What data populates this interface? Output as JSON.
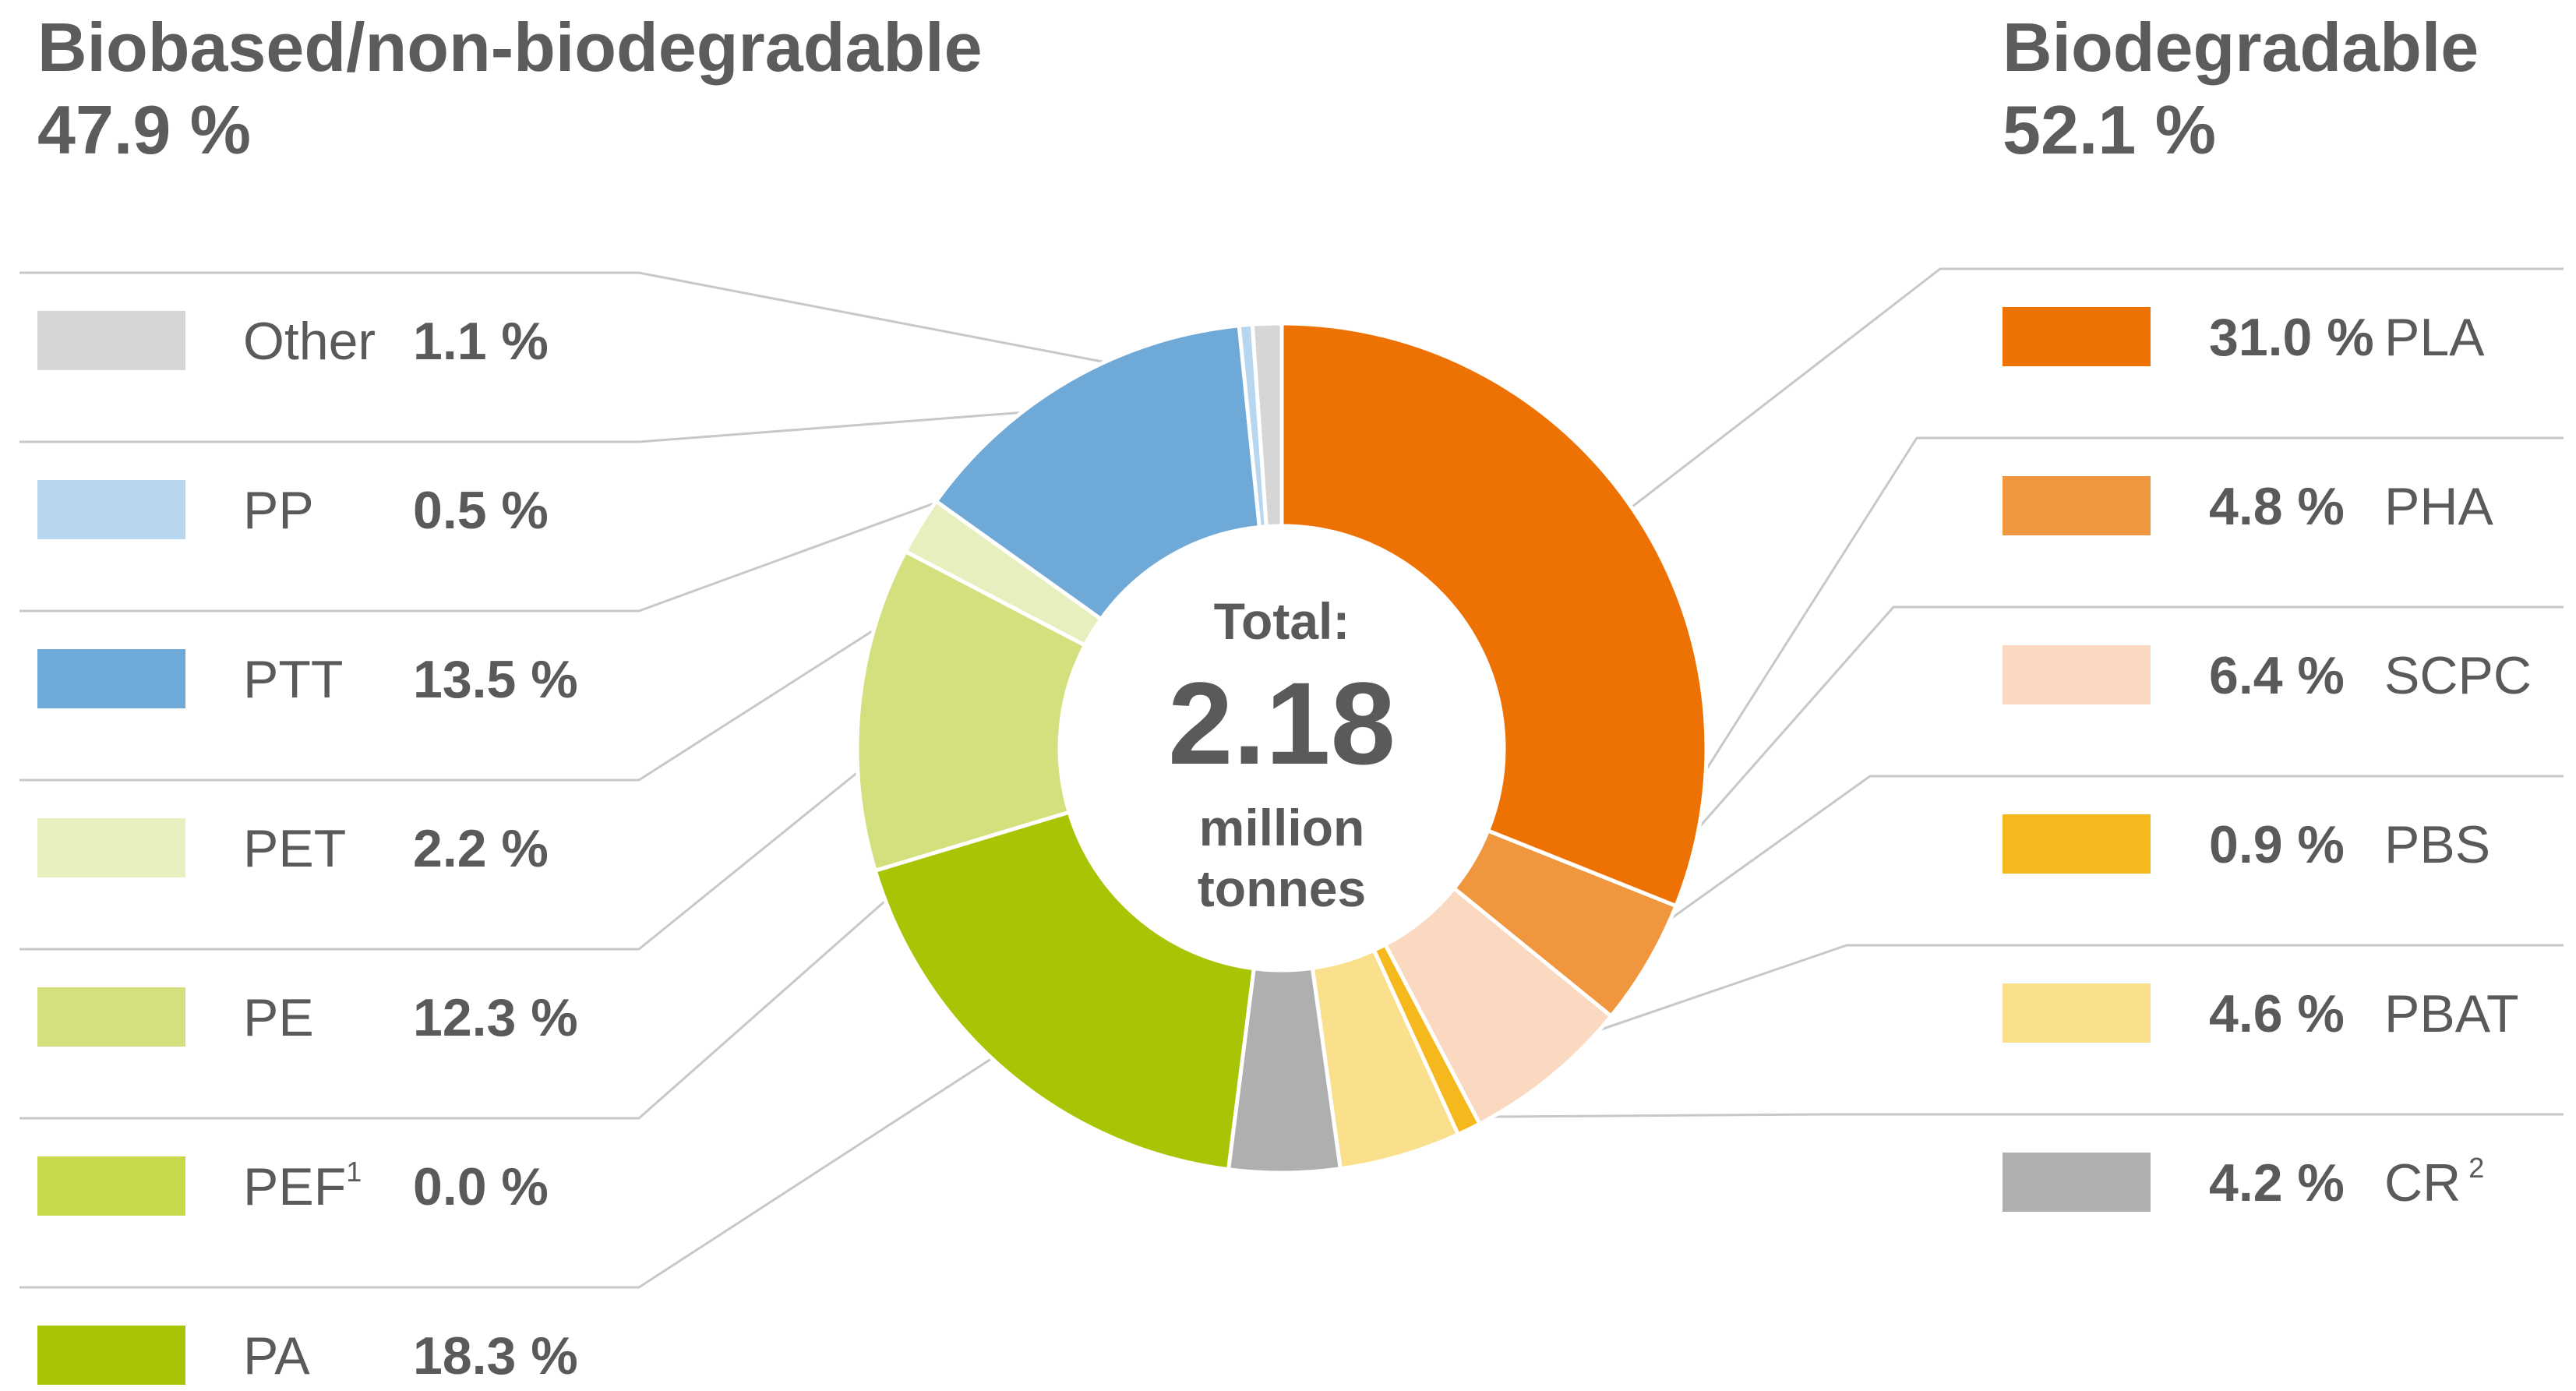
{
  "headers": {
    "left": {
      "title": "Biobased/non-biodegradable",
      "percent": "47.9 %"
    },
    "right": {
      "title": "Biodegradable",
      "percent": "52.1 %"
    }
  },
  "center": {
    "line1": "Total:",
    "value": "2.18",
    "line3": "million",
    "line4": "tonnes"
  },
  "chart_data": {
    "type": "pie",
    "donut": true,
    "total": 2.18,
    "total_unit": "million tonnes",
    "slices": [
      {
        "label": "PLA",
        "value": 31.0,
        "value_text": "31.0 %",
        "color": "#ee7203",
        "group": "biodegradable"
      },
      {
        "label": "PHA",
        "value": 4.8,
        "value_text": "4.8 %",
        "color": "#f0963e",
        "group": "biodegradable"
      },
      {
        "label": "SCPC",
        "value": 6.4,
        "value_text": "6.4 %",
        "color": "#fad9c0",
        "group": "biodegradable"
      },
      {
        "label": "PBS",
        "value": 0.9,
        "value_text": "0.9 %",
        "color": "#f5b91d",
        "group": "biodegradable"
      },
      {
        "label": "PBAT",
        "value": 4.6,
        "value_text": "4.6 %",
        "color": "#fadf8d",
        "group": "biodegradable"
      },
      {
        "label": "CR",
        "sup": "2",
        "value": 4.2,
        "value_text": "4.2 %",
        "color": "#afafaf",
        "group": "biodegradable"
      },
      {
        "label": "PA",
        "value": 18.3,
        "value_text": "18.3 %",
        "color": "#a9c404",
        "group": "biobased"
      },
      {
        "label": "PEF",
        "sup": "1",
        "value": 0.0,
        "value_text": "0.0 %",
        "color": "#c7d94a",
        "group": "biobased"
      },
      {
        "label": "PE",
        "value": 12.3,
        "value_text": "12.3 %",
        "color": "#d4e07e",
        "group": "biobased"
      },
      {
        "label": "PET",
        "value": 2.2,
        "value_text": "2.2 %",
        "color": "#e7efbf",
        "group": "biobased"
      },
      {
        "label": "PTT",
        "value": 13.5,
        "value_text": "13.5 %",
        "color": "#6fa9d8",
        "group": "biobased"
      },
      {
        "label": "PP",
        "value": 0.5,
        "value_text": "0.5 %",
        "color": "#b7d6ef",
        "group": "biobased"
      },
      {
        "label": "Other",
        "value": 1.1,
        "value_text": "1.1 %",
        "color": "#d6d6d6",
        "group": "biobased"
      }
    ],
    "legend_left": [
      "Other",
      "PP",
      "PTT",
      "PET",
      "PE",
      "PEF",
      "PA"
    ],
    "legend_right": [
      "PLA",
      "PHA",
      "SCPC",
      "PBS",
      "PBAT",
      "CR"
    ]
  }
}
